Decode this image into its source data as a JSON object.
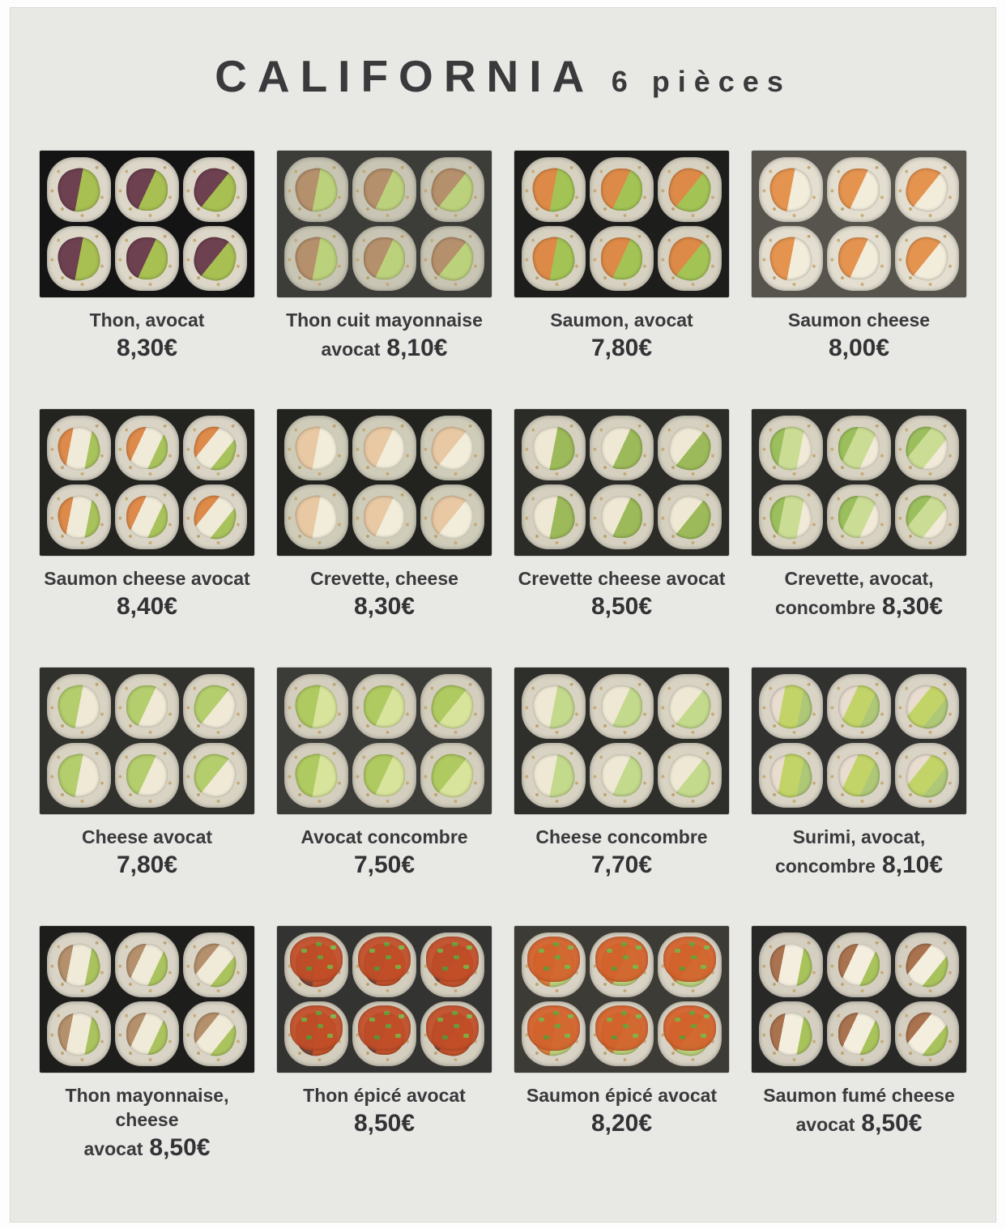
{
  "page": {
    "title": "CALIFORNIA",
    "subtitle": "6 pièces"
  },
  "colors": {
    "page_background": "#e8e8e5",
    "outer_background": "#fdfdfd",
    "text": "#3a3a3c"
  },
  "menu_items": [
    {
      "name": "Thon, avocat",
      "price_prefix": "",
      "price": "8,30€",
      "photo": {
        "bg": "#141414",
        "rice": "#dcd7c9",
        "fillings": [
          "#6e4150",
          "#a8bf52"
        ]
      }
    },
    {
      "name": "Thon cuit mayonnaise",
      "price_prefix": "avocat",
      "price": "8,10€",
      "photo": {
        "bg": "#3c3c38",
        "rice": "#c8c5b4",
        "fillings": [
          "#b5906c",
          "#bcd17c"
        ]
      }
    },
    {
      "name": "Saumon, avocat",
      "price_prefix": "",
      "price": "7,80€",
      "photo": {
        "bg": "#1d1d1b",
        "rice": "#d6d1c1",
        "fillings": [
          "#dd8a48",
          "#a3c455"
        ]
      }
    },
    {
      "name": "Saumon cheese",
      "price_prefix": "",
      "price": "8,00€",
      "photo": {
        "bg": "#57544e",
        "rice": "#e3ded0",
        "fillings": [
          "#e59450",
          "#f2ecdb"
        ]
      }
    },
    {
      "name": "Saumon cheese avocat",
      "price_prefix": "",
      "price": "8,40€",
      "photo": {
        "bg": "#23231f",
        "rice": "#d9d4c6",
        "fillings": [
          "#dd8a4a",
          "#f0ead8",
          "#a9c35c"
        ]
      }
    },
    {
      "name": "Crevette, cheese",
      "price_prefix": "",
      "price": "8,30€",
      "photo": {
        "bg": "#22221f",
        "rice": "#cfccba",
        "fillings": [
          "#e8c9a4",
          "#f2edda"
        ]
      }
    },
    {
      "name": "Crevette cheese avocat",
      "price_prefix": "",
      "price": "8,50€",
      "photo": {
        "bg": "#2b2b27",
        "rice": "#d5d0c0",
        "fillings": [
          "#efe8d5",
          "#9cba59"
        ]
      }
    },
    {
      "name": "Crevette, avocat,",
      "price_prefix": "concombre",
      "price": "8,30€",
      "photo": {
        "bg": "#2c2c28",
        "rice": "#d7d2c2",
        "fillings": [
          "#9cbf5e",
          "#cbdd95",
          "#f2ead9"
        ]
      }
    },
    {
      "name": "Cheese avocat",
      "price_prefix": "",
      "price": "7,80€",
      "photo": {
        "bg": "#30302c",
        "rice": "#d8d3c3",
        "fillings": [
          "#b4ce6d",
          "#efe9d6"
        ]
      }
    },
    {
      "name": "Avocat concombre",
      "price_prefix": "",
      "price": "7,50€",
      "photo": {
        "bg": "#3b3b37",
        "rice": "#d3cebe",
        "fillings": [
          "#b0ca62",
          "#d8e49c"
        ]
      }
    },
    {
      "name": "Cheese concombre",
      "price_prefix": "",
      "price": "7,70€",
      "photo": {
        "bg": "#2e2e2a",
        "rice": "#d8d3c3",
        "fillings": [
          "#eee8d4",
          "#c3d98c"
        ]
      }
    },
    {
      "name": "Surimi, avocat,",
      "price_prefix": "concombre",
      "price": "8,10€",
      "photo": {
        "bg": "#313130",
        "rice": "#d9d4c6",
        "fillings": [
          "#e9ddd0",
          "#c2d468",
          "#aec878"
        ]
      }
    },
    {
      "name": "Thon mayonnaise, cheese",
      "price_prefix": "avocat",
      "price": "8,50€",
      "photo": {
        "bg": "#1d1d1b",
        "rice": "#d9d4c6",
        "fillings": [
          "#b5906c",
          "#f0ead8",
          "#abc35e"
        ]
      }
    },
    {
      "name": "Thon épicé avocat",
      "price_prefix": "",
      "price": "8,50€",
      "photo": {
        "bg": "#333331",
        "rice": "#d3cebe",
        "fillings": [
          "#7c4638",
          "#c0532c"
        ],
        "sauce": "#c24e28"
      }
    },
    {
      "name": "Saumon épicé avocat",
      "price_prefix": "",
      "price": "8,20€",
      "photo": {
        "bg": "#3d3b35",
        "rice": "#d8d3c5",
        "fillings": [
          "#d77f3c",
          "#b8cf7a"
        ],
        "sauce": "#d3612c"
      }
    },
    {
      "name": "Saumon fumé cheese",
      "price_prefix": "avocat",
      "price": "8,50€",
      "photo": {
        "bg": "#282826",
        "rice": "#d4cfc1",
        "fillings": [
          "#aa734f",
          "#f4eede",
          "#a9c35c"
        ]
      }
    }
  ]
}
